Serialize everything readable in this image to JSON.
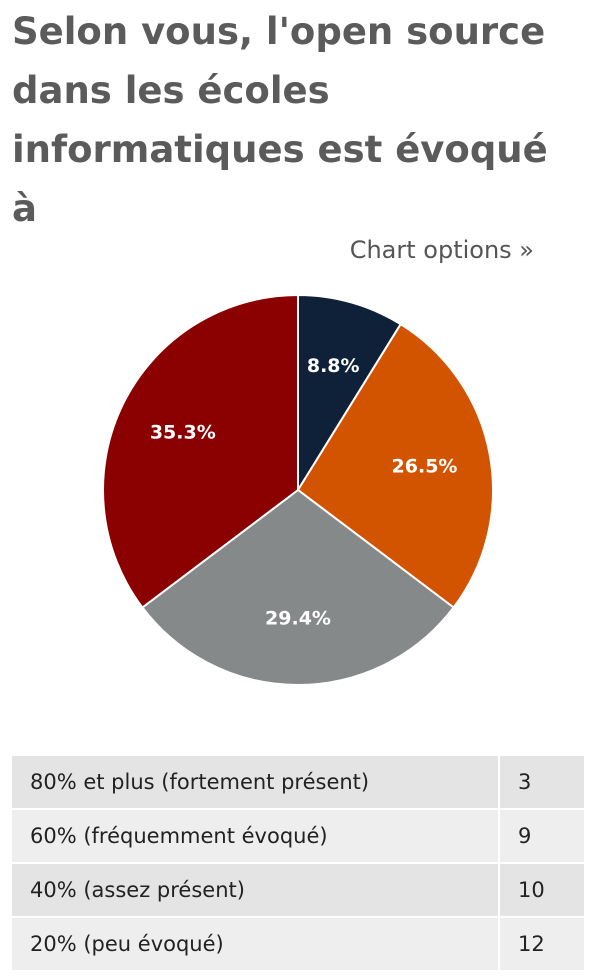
{
  "page": {
    "title": "Selon vous, l'open source dans les écoles informatiques est évoqué à",
    "chart_options_label": "Chart options »"
  },
  "colors": {
    "title": "#5b5b5b",
    "slice_1": "#0e2138",
    "slice_2": "#d35400",
    "slice_3": "#86898a",
    "slice_4": "#8b0000"
  },
  "chart_data": {
    "type": "pie",
    "categories": [
      "80% et plus (fortement présent)",
      "60% (fréquemment évoqué)",
      "40% (assez présent)",
      "20% (peu évoqué)"
    ],
    "values": [
      3,
      9,
      10,
      12
    ],
    "percent_labels": [
      "8.8%",
      "26.5%",
      "29.4%",
      "35.3%"
    ],
    "colors": [
      "#0e2138",
      "#d35400",
      "#86898a",
      "#8b0000"
    ],
    "start": "12 o'clock",
    "direction": "clockwise"
  },
  "table": {
    "rows": [
      {
        "label": "80% et plus (fortement présent)",
        "count": "3"
      },
      {
        "label": "60% (fréquemment évoqué)",
        "count": "9"
      },
      {
        "label": "40% (assez présent)",
        "count": "10"
      },
      {
        "label": "20% (peu évoqué)",
        "count": "12"
      }
    ]
  }
}
